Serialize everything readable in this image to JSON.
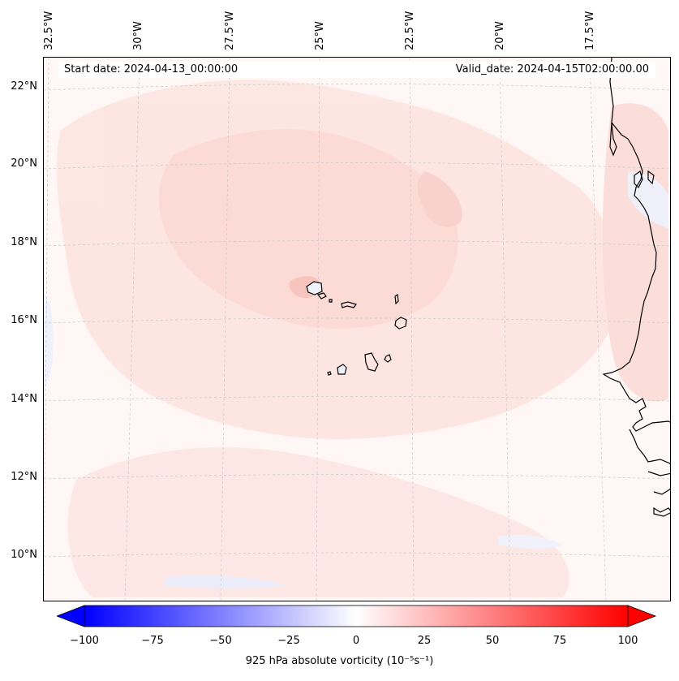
{
  "map": {
    "start_date": "Start date: 2024-04-13_00:00:00",
    "valid_date": "Valid_date: 2024-04-15T02:00:00.00",
    "lon_labels": [
      "32.5°W",
      "30°W",
      "27.5°W",
      "25°W",
      "22.5°W",
      "20°W",
      "17.5°W"
    ],
    "lat_labels": [
      "22°N",
      "20°N",
      "18°N",
      "16°N",
      "14°N",
      "12°N",
      "10°N"
    ]
  },
  "colorbar": {
    "ticks": [
      "−100",
      "−75",
      "−50",
      "−25",
      "0",
      "25",
      "50",
      "75",
      "100"
    ],
    "label": "925 hPa absolute vorticity (10⁻⁵s⁻¹)",
    "min_color": "#0000ff",
    "mid_color": "#ffffff",
    "max_color": "#ff0000"
  }
}
